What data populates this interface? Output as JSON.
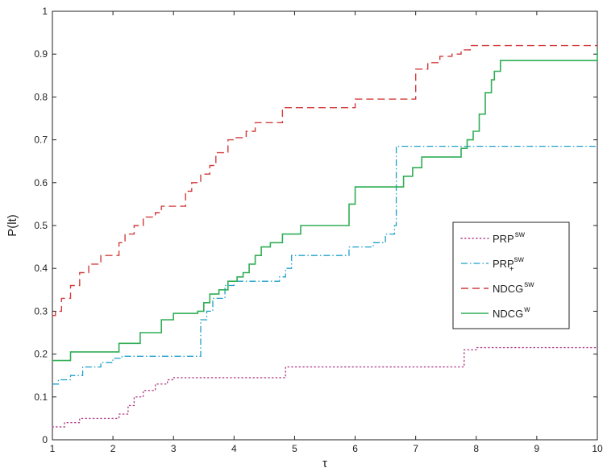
{
  "chart_data": {
    "type": "line",
    "xlabel": "τ",
    "ylabel": "P(lt)",
    "xlim": [
      1,
      10
    ],
    "ylim": [
      0,
      1
    ],
    "xticks": [
      "1",
      "2",
      "3",
      "4",
      "5",
      "6",
      "7",
      "8",
      "9",
      "10"
    ],
    "yticks": [
      "0",
      "0.1",
      "0.2",
      "0.3",
      "0.4",
      "0.5",
      "0.6",
      "0.7",
      "0.8",
      "0.9",
      "1"
    ],
    "grid": false,
    "legend_position": "right",
    "series": [
      {
        "name": "PRP",
        "sup": "sw",
        "sub": "",
        "color": "#b0408a",
        "dash": "dotted",
        "x": [
          1,
          1.2,
          1.45,
          2.0,
          2.1,
          2.25,
          2.35,
          2.5,
          2.7,
          2.9,
          3.0,
          3.5,
          4.8,
          4.85,
          5.0,
          6.0,
          7.75,
          7.8,
          8.0,
          10.0
        ],
        "y": [
          0.03,
          0.04,
          0.05,
          0.05,
          0.06,
          0.08,
          0.1,
          0.115,
          0.13,
          0.14,
          0.145,
          0.145,
          0.145,
          0.17,
          0.17,
          0.17,
          0.17,
          0.21,
          0.215,
          0.215
        ]
      },
      {
        "name": "PRP",
        "sup": "sw",
        "sub": "+",
        "color": "#1ea0c8",
        "dash": "dashdot",
        "x": [
          1,
          1.1,
          1.3,
          1.5,
          1.8,
          2.0,
          2.15,
          3.4,
          3.45,
          3.55,
          3.65,
          3.85,
          4.0,
          4.6,
          4.75,
          4.85,
          4.95,
          5.5,
          5.9,
          6.1,
          6.3,
          6.5,
          6.65,
          6.68,
          7.5,
          7.8,
          10.0
        ],
        "y": [
          0.13,
          0.14,
          0.15,
          0.17,
          0.18,
          0.19,
          0.195,
          0.195,
          0.28,
          0.3,
          0.33,
          0.36,
          0.37,
          0.37,
          0.38,
          0.4,
          0.43,
          0.43,
          0.45,
          0.45,
          0.46,
          0.48,
          0.5,
          0.685,
          0.685,
          0.685,
          0.685
        ]
      },
      {
        "name": "NDCG",
        "sup": "sw",
        "sub": "",
        "color": "#d23c3c",
        "dash": "dashed",
        "x": [
          1,
          1.05,
          1.15,
          1.3,
          1.45,
          1.6,
          1.8,
          2.0,
          2.1,
          2.2,
          2.35,
          2.5,
          2.7,
          2.8,
          3.0,
          3.2,
          3.3,
          3.45,
          3.6,
          3.7,
          3.9,
          4.0,
          4.2,
          4.35,
          4.8,
          5.85,
          6.0,
          6.9,
          7.0,
          7.2,
          7.4,
          7.6,
          7.75,
          7.9,
          8.3,
          10.0
        ],
        "y": [
          0.29,
          0.3,
          0.33,
          0.36,
          0.39,
          0.41,
          0.43,
          0.43,
          0.46,
          0.48,
          0.5,
          0.52,
          0.53,
          0.545,
          0.545,
          0.58,
          0.6,
          0.62,
          0.64,
          0.67,
          0.7,
          0.705,
          0.72,
          0.74,
          0.775,
          0.775,
          0.795,
          0.795,
          0.865,
          0.88,
          0.895,
          0.9,
          0.91,
          0.92,
          0.92,
          0.92
        ]
      },
      {
        "name": "NDCG",
        "sup": "w",
        "sub": "",
        "color": "#2fae55",
        "dash": "solid",
        "x": [
          1,
          1.3,
          2.1,
          2.45,
          2.8,
          3.0,
          3.4,
          3.5,
          3.6,
          3.75,
          3.9,
          4.05,
          4.15,
          4.25,
          4.35,
          4.45,
          4.6,
          4.8,
          5.1,
          5.9,
          6.0,
          6.7,
          6.8,
          6.95,
          7.1,
          7.5,
          7.75,
          7.85,
          7.95,
          8.05,
          8.15,
          8.25,
          8.3,
          8.4,
          9.9,
          10.0
        ],
        "y": [
          0.185,
          0.205,
          0.225,
          0.25,
          0.28,
          0.295,
          0.3,
          0.32,
          0.34,
          0.35,
          0.37,
          0.38,
          0.39,
          0.41,
          0.43,
          0.45,
          0.46,
          0.48,
          0.5,
          0.55,
          0.59,
          0.59,
          0.615,
          0.635,
          0.66,
          0.66,
          0.68,
          0.7,
          0.72,
          0.76,
          0.81,
          0.84,
          0.86,
          0.885,
          0.885,
          0.91
        ]
      }
    ]
  }
}
